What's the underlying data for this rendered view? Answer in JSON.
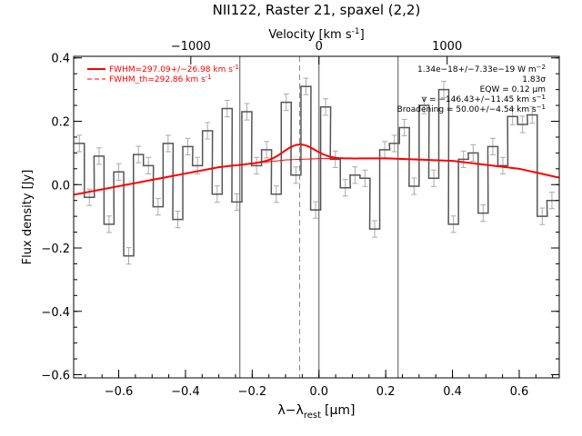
{
  "chart_data": {
    "type": "line",
    "title": "NII122, Raster 21, spaxel (2,2)",
    "xlabel": "λ−λ",
    "xlabel_sub": "rest",
    "xlabel_unit": "[μm]",
    "ylabel": "Flux density [Jy]",
    "top_xlabel": "Velocity [km s",
    "top_xlabel_sup": "-1",
    "top_xlabel_end": "]",
    "xlim": [
      -0.735,
      0.72
    ],
    "ylim": [
      -0.61,
      0.405
    ],
    "top_ticks": [
      {
        "value": -1000,
        "x": -0.384,
        "label": "−1000"
      },
      {
        "value": 0,
        "x": 0.0,
        "label": "0"
      },
      {
        "value": 1000,
        "x": 0.384,
        "label": "1000"
      }
    ],
    "x_ticks": [
      -0.6,
      -0.4,
      -0.2,
      0.0,
      0.2,
      0.4,
      0.6
    ],
    "x_tick_labels": [
      "−0.6",
      "−0.4",
      "−0.2",
      "0.0",
      "0.2",
      "0.4",
      "0.6"
    ],
    "y_ticks": [
      -0.6,
      -0.4,
      -0.2,
      0.0,
      0.2,
      0.4
    ],
    "y_tick_labels": [
      "−0.6",
      "−0.4",
      "−0.2",
      "0.0",
      "0.2",
      "0.4"
    ],
    "vlines_solid": [
      -0.237,
      0.0,
      0.237
    ],
    "vline_dashed": -0.058,
    "data": {
      "x": [
        -0.718,
        -0.688,
        -0.659,
        -0.629,
        -0.6,
        -0.57,
        -0.541,
        -0.511,
        -0.482,
        -0.452,
        -0.423,
        -0.393,
        -0.364,
        -0.334,
        -0.305,
        -0.275,
        -0.246,
        -0.216,
        -0.187,
        -0.157,
        -0.128,
        -0.098,
        -0.069,
        -0.039,
        -0.01,
        0.02,
        0.049,
        0.079,
        0.108,
        0.138,
        0.167,
        0.197,
        0.226,
        0.256,
        0.285,
        0.315,
        0.344,
        0.374,
        0.403,
        0.433,
        0.462,
        0.492,
        0.521,
        0.551,
        0.58,
        0.61,
        0.639,
        0.669,
        0.698
      ],
      "y": [
        0.13,
        -0.04,
        0.09,
        -0.125,
        0.04,
        -0.225,
        0.095,
        0.06,
        -0.07,
        0.13,
        -0.11,
        0.12,
        0.06,
        0.17,
        -0.03,
        0.24,
        -0.055,
        0.23,
        0.06,
        0.11,
        -0.03,
        0.26,
        0.03,
        0.31,
        -0.08,
        0.245,
        0.08,
        -0.01,
        0.03,
        0.02,
        -0.14,
        0.11,
        0.13,
        0.18,
        -0.005,
        0.25,
        0.02,
        0.3,
        -0.125,
        0.08,
        0.1,
        -0.09,
        0.12,
        0.06,
        0.215,
        0.19,
        0.22,
        -0.1,
        -0.05
      ],
      "err": 0.026
    },
    "series": [
      {
        "name": "FWHM=297.09+/−26.98 km s",
        "name_sup": "-1",
        "style": "solid",
        "color": "#ff0000",
        "amplitude": 0.047,
        "center": -0.058,
        "sigma": 0.045
      },
      {
        "name": "FWHM_th=292.86 km s",
        "name_sup": "-1",
        "style": "dashed",
        "color": "#ff0000",
        "amplitude": 0.0,
        "center": -0.058,
        "sigma": 0.045
      }
    ],
    "continuum": {
      "x": [
        -0.735,
        -0.5,
        -0.3,
        -0.1,
        0.0,
        0.2,
        0.4,
        0.6,
        0.72
      ],
      "y": [
        -0.032,
        0.015,
        0.055,
        0.078,
        0.082,
        0.083,
        0.075,
        0.05,
        0.022
      ]
    },
    "annotations": [
      {
        "text": "1.34e−18+/−7.33e−19 W m",
        "sup": "−2"
      },
      {
        "text": "1.83σ",
        "sup": ""
      },
      {
        "text": "EQW = 0.12 μm",
        "sup": ""
      },
      {
        "text": "v = −146.43+/−11.45 km s",
        "sup": "−1"
      },
      {
        "text": "Broadening = 50.00+/−4.54 km s",
        "sup": "−1"
      }
    ]
  }
}
